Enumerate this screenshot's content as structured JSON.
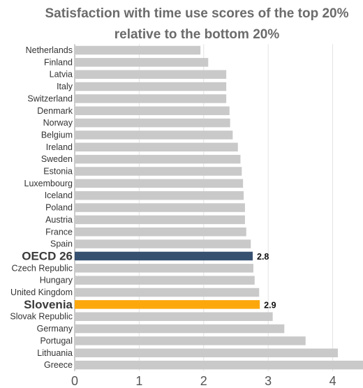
{
  "chart_data": {
    "type": "bar",
    "orientation": "horizontal",
    "title_lines": [
      "Satisfaction with time use scores of the top 20%",
      "relative to the bottom 20%"
    ],
    "categories": [
      "Netherlands",
      "Finland",
      "Latvia",
      "Italy",
      "Switzerland",
      "Denmark",
      "Norway",
      "Belgium",
      "Ireland",
      "Sweden",
      "Estonia",
      "Luxembourg",
      "Iceland",
      "Poland",
      "Austria",
      "France",
      "Spain",
      "OECD 26",
      "Czech Republic",
      "Hungary",
      "United Kingdom",
      "Slovenia",
      "Slovak Republic",
      "Germany",
      "Portugal",
      "Lithuania",
      "Greece"
    ],
    "values": [
      1.95,
      2.07,
      2.35,
      2.35,
      2.35,
      2.4,
      2.41,
      2.45,
      2.53,
      2.57,
      2.59,
      2.61,
      2.62,
      2.64,
      2.64,
      2.66,
      2.73,
      2.76,
      2.77,
      2.79,
      2.86,
      2.87,
      3.07,
      3.25,
      3.58,
      4.08,
      4.47
    ],
    "highlights": [
      {
        "category": "OECD 26",
        "label": "2.8",
        "color": "#36506f"
      },
      {
        "category": "Slovenia",
        "label": "2.9",
        "color": "#fca80d"
      }
    ],
    "default_color": "#c9c9c9",
    "xlim": [
      0,
      4.47
    ],
    "xticks": [
      0,
      1,
      2,
      3,
      4
    ],
    "grid": true,
    "xlabel": "",
    "ylabel": ""
  }
}
